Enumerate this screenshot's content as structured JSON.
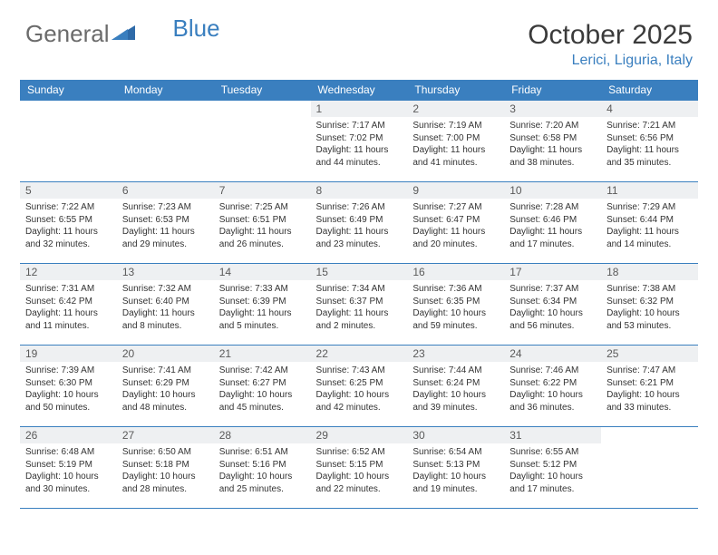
{
  "logo": {
    "part1": "General",
    "part2": "Blue"
  },
  "header": {
    "month_title": "October 2025",
    "location": "Lerici, Liguria, Italy"
  },
  "colors": {
    "accent": "#3a7fbf",
    "daynum_bg": "#eef0f2",
    "text": "#333333",
    "logo_gray": "#6b6b6b"
  },
  "weekdays": [
    "Sunday",
    "Monday",
    "Tuesday",
    "Wednesday",
    "Thursday",
    "Friday",
    "Saturday"
  ],
  "weeks": [
    [
      null,
      null,
      null,
      {
        "n": "1",
        "sr": "7:17 AM",
        "ss": "7:02 PM",
        "dh": 11,
        "dm": 44
      },
      {
        "n": "2",
        "sr": "7:19 AM",
        "ss": "7:00 PM",
        "dh": 11,
        "dm": 41
      },
      {
        "n": "3",
        "sr": "7:20 AM",
        "ss": "6:58 PM",
        "dh": 11,
        "dm": 38
      },
      {
        "n": "4",
        "sr": "7:21 AM",
        "ss": "6:56 PM",
        "dh": 11,
        "dm": 35
      }
    ],
    [
      {
        "n": "5",
        "sr": "7:22 AM",
        "ss": "6:55 PM",
        "dh": 11,
        "dm": 32
      },
      {
        "n": "6",
        "sr": "7:23 AM",
        "ss": "6:53 PM",
        "dh": 11,
        "dm": 29
      },
      {
        "n": "7",
        "sr": "7:25 AM",
        "ss": "6:51 PM",
        "dh": 11,
        "dm": 26
      },
      {
        "n": "8",
        "sr": "7:26 AM",
        "ss": "6:49 PM",
        "dh": 11,
        "dm": 23
      },
      {
        "n": "9",
        "sr": "7:27 AM",
        "ss": "6:47 PM",
        "dh": 11,
        "dm": 20
      },
      {
        "n": "10",
        "sr": "7:28 AM",
        "ss": "6:46 PM",
        "dh": 11,
        "dm": 17
      },
      {
        "n": "11",
        "sr": "7:29 AM",
        "ss": "6:44 PM",
        "dh": 11,
        "dm": 14
      }
    ],
    [
      {
        "n": "12",
        "sr": "7:31 AM",
        "ss": "6:42 PM",
        "dh": 11,
        "dm": 11
      },
      {
        "n": "13",
        "sr": "7:32 AM",
        "ss": "6:40 PM",
        "dh": 11,
        "dm": 8
      },
      {
        "n": "14",
        "sr": "7:33 AM",
        "ss": "6:39 PM",
        "dh": 11,
        "dm": 5
      },
      {
        "n": "15",
        "sr": "7:34 AM",
        "ss": "6:37 PM",
        "dh": 11,
        "dm": 2
      },
      {
        "n": "16",
        "sr": "7:36 AM",
        "ss": "6:35 PM",
        "dh": 10,
        "dm": 59
      },
      {
        "n": "17",
        "sr": "7:37 AM",
        "ss": "6:34 PM",
        "dh": 10,
        "dm": 56
      },
      {
        "n": "18",
        "sr": "7:38 AM",
        "ss": "6:32 PM",
        "dh": 10,
        "dm": 53
      }
    ],
    [
      {
        "n": "19",
        "sr": "7:39 AM",
        "ss": "6:30 PM",
        "dh": 10,
        "dm": 50
      },
      {
        "n": "20",
        "sr": "7:41 AM",
        "ss": "6:29 PM",
        "dh": 10,
        "dm": 48
      },
      {
        "n": "21",
        "sr": "7:42 AM",
        "ss": "6:27 PM",
        "dh": 10,
        "dm": 45
      },
      {
        "n": "22",
        "sr": "7:43 AM",
        "ss": "6:25 PM",
        "dh": 10,
        "dm": 42
      },
      {
        "n": "23",
        "sr": "7:44 AM",
        "ss": "6:24 PM",
        "dh": 10,
        "dm": 39
      },
      {
        "n": "24",
        "sr": "7:46 AM",
        "ss": "6:22 PM",
        "dh": 10,
        "dm": 36
      },
      {
        "n": "25",
        "sr": "7:47 AM",
        "ss": "6:21 PM",
        "dh": 10,
        "dm": 33
      }
    ],
    [
      {
        "n": "26",
        "sr": "6:48 AM",
        "ss": "5:19 PM",
        "dh": 10,
        "dm": 30
      },
      {
        "n": "27",
        "sr": "6:50 AM",
        "ss": "5:18 PM",
        "dh": 10,
        "dm": 28
      },
      {
        "n": "28",
        "sr": "6:51 AM",
        "ss": "5:16 PM",
        "dh": 10,
        "dm": 25
      },
      {
        "n": "29",
        "sr": "6:52 AM",
        "ss": "5:15 PM",
        "dh": 10,
        "dm": 22
      },
      {
        "n": "30",
        "sr": "6:54 AM",
        "ss": "5:13 PM",
        "dh": 10,
        "dm": 19
      },
      {
        "n": "31",
        "sr": "6:55 AM",
        "ss": "5:12 PM",
        "dh": 10,
        "dm": 17
      },
      null
    ]
  ],
  "labels": {
    "sunrise": "Sunrise:",
    "sunset": "Sunset:",
    "daylight": "Daylight:",
    "hours_word": "hours",
    "and_word": "and",
    "minutes_word": "minutes."
  }
}
